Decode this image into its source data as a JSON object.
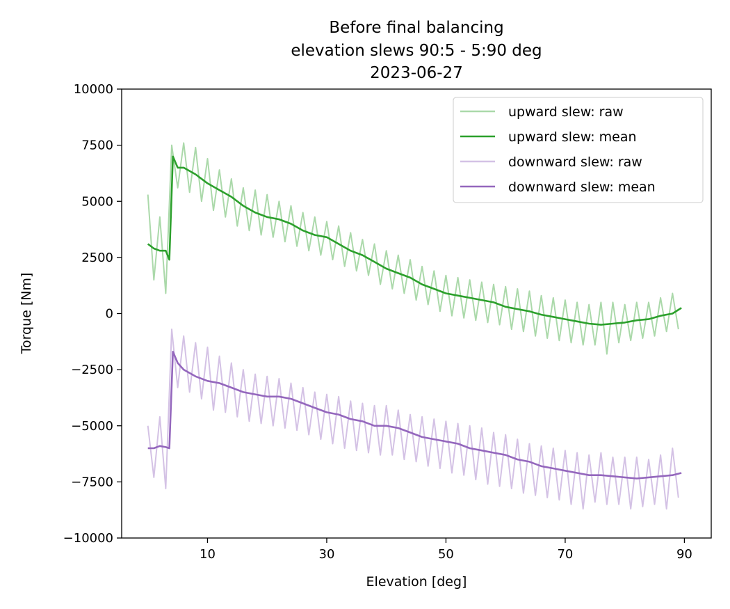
{
  "chart_data": {
    "type": "line",
    "title": [
      "Before final balancing",
      "elevation slews 90:5 - 5:90 deg",
      "2023-06-27"
    ],
    "xlabel": "Elevation [deg]",
    "ylabel": "Torque [Nm]",
    "xlim": [
      -4.4,
      94.5
    ],
    "ylim": [
      -10000,
      10000
    ],
    "xticks": [
      10,
      30,
      50,
      70,
      90
    ],
    "yticks": [
      10000,
      7500,
      5000,
      2500,
      0,
      -2500,
      -5000,
      -7500,
      -10000
    ],
    "ytick_labels": [
      "10000",
      "7500",
      "5000",
      "2500",
      "0",
      "−2500",
      "−5000",
      "−7500",
      "−10000"
    ],
    "grid": false,
    "legend_position": "top-right",
    "raw_x": [
      0,
      1,
      2,
      3,
      4,
      5,
      6,
      7,
      8,
      9,
      10,
      11,
      12,
      13,
      14,
      15,
      16,
      17,
      18,
      19,
      20,
      21,
      22,
      23,
      24,
      25,
      26,
      27,
      28,
      29,
      30,
      31,
      32,
      33,
      34,
      35,
      36,
      37,
      38,
      39,
      40,
      41,
      42,
      43,
      44,
      45,
      46,
      47,
      48,
      49,
      50,
      51,
      52,
      53,
      54,
      55,
      56,
      57,
      58,
      59,
      60,
      61,
      62,
      63,
      64,
      65,
      66,
      67,
      68,
      69,
      70,
      71,
      72,
      73,
      74,
      75,
      76,
      77,
      78,
      79,
      80,
      81,
      82,
      83,
      84,
      85,
      86,
      87,
      88,
      89
    ],
    "mean_x": [
      0,
      1,
      2,
      3,
      3.6,
      4.2,
      5,
      6,
      8,
      10,
      12,
      14,
      16,
      18,
      20,
      22,
      24,
      26,
      28,
      30,
      32,
      34,
      36,
      38,
      40,
      42,
      44,
      46,
      48,
      50,
      52,
      54,
      56,
      58,
      60,
      62,
      64,
      66,
      68,
      70,
      72,
      74,
      76,
      78,
      80,
      82,
      84,
      86,
      88,
      89.5
    ],
    "series": [
      {
        "name": "upward slew: raw",
        "color": "#abd9aa",
        "kind": "raw",
        "values": [
          5300,
          1500,
          4300,
          900,
          7500,
          5600,
          7600,
          5400,
          7400,
          5000,
          6900,
          4600,
          6400,
          4300,
          6000,
          3900,
          5600,
          3700,
          5500,
          3500,
          5300,
          3400,
          5000,
          3200,
          4800,
          3000,
          4500,
          2800,
          4300,
          2600,
          4100,
          2400,
          3900,
          2100,
          3600,
          1900,
          3300,
          1700,
          3100,
          1300,
          2800,
          1100,
          2600,
          900,
          2400,
          600,
          2100,
          400,
          1900,
          100,
          1700,
          -100,
          1600,
          -200,
          1500,
          -300,
          1400,
          -400,
          1300,
          -500,
          1200,
          -700,
          1100,
          -800,
          1000,
          -1000,
          800,
          -1100,
          700,
          -1200,
          600,
          -1300,
          500,
          -1400,
          400,
          -1400,
          500,
          -1800,
          500,
          -1300,
          400,
          -1200,
          500,
          -1100,
          500,
          -1000,
          700,
          -800,
          900,
          -700
        ]
      },
      {
        "name": "upward slew: mean",
        "color": "#2ca02c",
        "kind": "mean",
        "values": [
          3100,
          2900,
          2800,
          2800,
          2400,
          7000,
          6500,
          6500,
          6200,
          5800,
          5500,
          5200,
          4800,
          4500,
          4300,
          4200,
          4000,
          3700,
          3500,
          3400,
          3100,
          2800,
          2600,
          2300,
          2000,
          1800,
          1600,
          1300,
          1100,
          900,
          800,
          700,
          600,
          500,
          300,
          200,
          100,
          -50,
          -150,
          -250,
          -350,
          -450,
          -500,
          -450,
          -400,
          -300,
          -250,
          -100,
          0,
          250
        ]
      },
      {
        "name": "downward slew: raw",
        "color": "#d4c2e5",
        "kind": "raw",
        "values": [
          -5000,
          -7300,
          -4600,
          -7800,
          -700,
          -3300,
          -1000,
          -3500,
          -1300,
          -3800,
          -1500,
          -4300,
          -1900,
          -4400,
          -2200,
          -4600,
          -2500,
          -4800,
          -2700,
          -4900,
          -2800,
          -5000,
          -2900,
          -5100,
          -3100,
          -5200,
          -3300,
          -5400,
          -3500,
          -5600,
          -3600,
          -5800,
          -3700,
          -6000,
          -3900,
          -6100,
          -4000,
          -6200,
          -4100,
          -6300,
          -4100,
          -6300,
          -4300,
          -6500,
          -4500,
          -6600,
          -4600,
          -6800,
          -4700,
          -6900,
          -4800,
          -7100,
          -4900,
          -7200,
          -5000,
          -7400,
          -5100,
          -7600,
          -5300,
          -7700,
          -5400,
          -7800,
          -5600,
          -8000,
          -5800,
          -8100,
          -5900,
          -8200,
          -6000,
          -8300,
          -6100,
          -8500,
          -6200,
          -8700,
          -6300,
          -8400,
          -6200,
          -8500,
          -6400,
          -8500,
          -6400,
          -8700,
          -6400,
          -8600,
          -6500,
          -8500,
          -6300,
          -8700,
          -6000,
          -8200
        ]
      },
      {
        "name": "downward slew: mean",
        "color": "#9467bd",
        "kind": "mean",
        "values": [
          -6000,
          -6000,
          -5900,
          -5950,
          -6000,
          -1700,
          -2200,
          -2500,
          -2800,
          -3000,
          -3100,
          -3300,
          -3500,
          -3600,
          -3700,
          -3700,
          -3800,
          -4000,
          -4200,
          -4400,
          -4500,
          -4700,
          -4800,
          -5000,
          -5000,
          -5100,
          -5300,
          -5500,
          -5600,
          -5700,
          -5800,
          -6000,
          -6100,
          -6200,
          -6300,
          -6500,
          -6600,
          -6800,
          -6900,
          -7000,
          -7100,
          -7200,
          -7200,
          -7250,
          -7300,
          -7350,
          -7300,
          -7250,
          -7200,
          -7100
        ]
      }
    ]
  }
}
